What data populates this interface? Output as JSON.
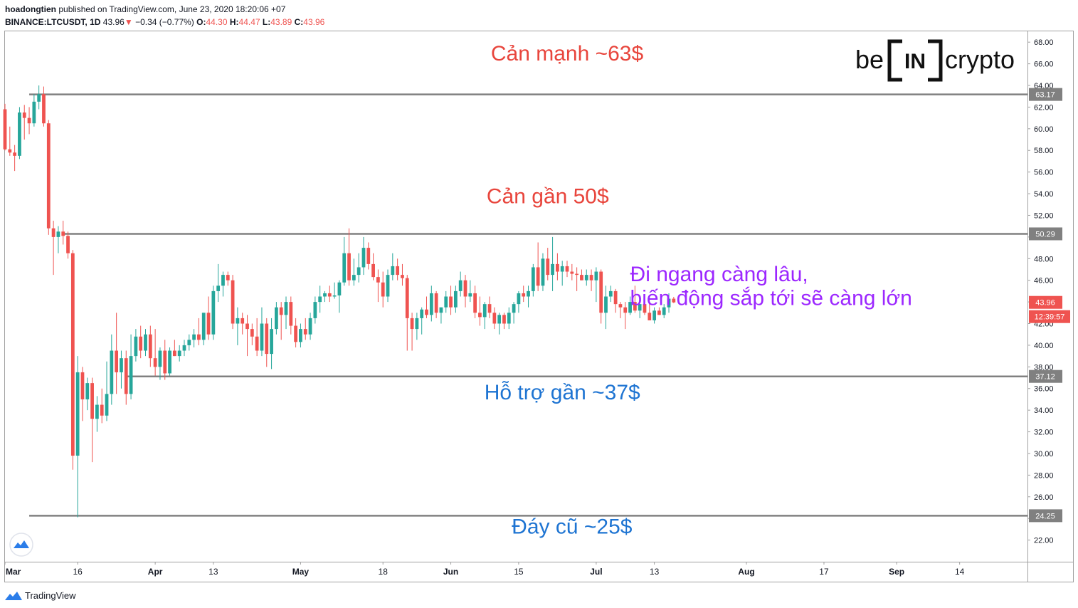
{
  "header": {
    "publisher": "hoadongtien",
    "published_text": "published on TradingView.com, June 23, 2020 18:20:06 +07",
    "symbol": "BINANCE:LTCUSDT, 1D",
    "last": "43.96",
    "change": "−0.34 (−0.77%)",
    "o_label": "O:",
    "o_value": "44.30",
    "h_label": "H:",
    "h_value": "44.47",
    "l_label": "L:",
    "l_value": "43.89",
    "c_label": "C:",
    "c_value": "43.96"
  },
  "footer": {
    "brand": "TradingView"
  },
  "logo": {
    "left": "be",
    "mid": "IN",
    "right": "crypto"
  },
  "colors": {
    "up": "#26a69a",
    "down": "#ef5350",
    "level": "#808080",
    "red_text": "#e8453c",
    "blue_text": "#1e74d2",
    "purple_text": "#9c27ff"
  },
  "chart_data": {
    "type": "candlestick",
    "ylim": [
      20,
      69
    ],
    "x_start": "2020-03-01",
    "x_end": "2020-09-28",
    "y_ticks": [
      22,
      24,
      26,
      28,
      30,
      32,
      34,
      36,
      38,
      40,
      42,
      44,
      46,
      48,
      50,
      52,
      54,
      56,
      58,
      60,
      62,
      64,
      66,
      68
    ],
    "x_ticks": [
      {
        "date": "2020-03-01",
        "label": "Mar",
        "bold": true
      },
      {
        "date": "2020-03-16",
        "label": "16",
        "bold": false
      },
      {
        "date": "2020-04-01",
        "label": "Apr",
        "bold": true
      },
      {
        "date": "2020-04-13",
        "label": "13",
        "bold": false
      },
      {
        "date": "2020-05-01",
        "label": "May",
        "bold": true
      },
      {
        "date": "2020-05-18",
        "label": "18",
        "bold": false
      },
      {
        "date": "2020-06-01",
        "label": "Jun",
        "bold": true
      },
      {
        "date": "2020-06-15",
        "label": "15",
        "bold": false
      },
      {
        "date": "2020-07-01",
        "label": "Jul",
        "bold": true
      },
      {
        "date": "2020-07-13",
        "label": "13",
        "bold": false
      },
      {
        "date": "2020-08-01",
        "label": "Aug",
        "bold": true
      },
      {
        "date": "2020-08-17",
        "label": "17",
        "bold": false
      },
      {
        "date": "2020-09-01",
        "label": "Sep",
        "bold": true
      },
      {
        "date": "2020-09-14",
        "label": "14",
        "bold": false
      }
    ],
    "levels": [
      {
        "value": 63.17,
        "label": "63.17",
        "from": "2020-03-06"
      },
      {
        "value": 50.29,
        "label": "50.29",
        "from": "2020-03-13"
      },
      {
        "value": 37.12,
        "label": "37.12",
        "from": "2020-03-26"
      },
      {
        "value": 24.25,
        "label": "24.25",
        "from": "2020-03-06"
      }
    ],
    "price_label": {
      "value": 43.96,
      "label": "43.96",
      "countdown": "12:39:57"
    },
    "annotations": [
      {
        "text": "Cản mạnh ~63$",
        "color": "red",
        "x": "2020-06-25",
        "y": 66.3
      },
      {
        "text": "Cản gần 50$",
        "color": "red",
        "x": "2020-06-21",
        "y": 53.1
      },
      {
        "text": "Đi ngang càng lâu,",
        "color": "purple",
        "x": "2020-07-08",
        "y": 45.9
      },
      {
        "text": "biến động sắp tới sẽ càng lớn",
        "color": "purple",
        "x": "2020-07-08",
        "y": 43.7
      },
      {
        "text": "Hỗ trợ gần ~37$",
        "color": "blue",
        "x": "2020-06-24",
        "y": 35.0
      },
      {
        "text": "Đáy cũ ~25$",
        "color": "blue",
        "x": "2020-06-26",
        "y": 22.6
      }
    ],
    "candles": [
      {
        "o": 61.8,
        "h": 62.3,
        "l": 58.0,
        "c": 58.1
      },
      {
        "o": 58.1,
        "h": 60.2,
        "l": 57.5,
        "c": 57.8
      },
      {
        "o": 57.8,
        "h": 58.5,
        "l": 56.1,
        "c": 57.5
      },
      {
        "o": 57.5,
        "h": 62.0,
        "l": 57.2,
        "c": 61.5
      },
      {
        "o": 61.5,
        "h": 62.2,
        "l": 59.0,
        "c": 61.0
      },
      {
        "o": 61.0,
        "h": 62.0,
        "l": 59.5,
        "c": 60.5
      },
      {
        "o": 60.5,
        "h": 63.2,
        "l": 60.2,
        "c": 62.5
      },
      {
        "o": 62.5,
        "h": 64.0,
        "l": 61.8,
        "c": 63.2
      },
      {
        "o": 63.2,
        "h": 63.9,
        "l": 60.2,
        "c": 60.5
      },
      {
        "o": 60.5,
        "h": 60.8,
        "l": 50.2,
        "c": 50.8
      },
      {
        "o": 50.8,
        "h": 51.5,
        "l": 46.5,
        "c": 50.0
      },
      {
        "o": 50.0,
        "h": 51.0,
        "l": 48.5,
        "c": 50.5
      },
      {
        "o": 50.5,
        "h": 51.5,
        "l": 49.3,
        "c": 50.1
      },
      {
        "o": 50.1,
        "h": 50.5,
        "l": 48.0,
        "c": 48.5
      },
      {
        "o": 48.5,
        "h": 48.8,
        "l": 28.5,
        "c": 29.8
      },
      {
        "o": 29.8,
        "h": 39.0,
        "l": 24.1,
        "c": 37.5
      },
      {
        "o": 37.5,
        "h": 38.0,
        "l": 33.0,
        "c": 35.0
      },
      {
        "o": 35.0,
        "h": 37.0,
        "l": 34.0,
        "c": 36.5
      },
      {
        "o": 36.5,
        "h": 37.0,
        "l": 29.2,
        "c": 33.2
      },
      {
        "o": 33.2,
        "h": 35.3,
        "l": 32.0,
        "c": 34.5
      },
      {
        "o": 34.5,
        "h": 36.0,
        "l": 32.8,
        "c": 33.5
      },
      {
        "o": 33.5,
        "h": 38.5,
        "l": 33.0,
        "c": 35.5
      },
      {
        "o": 35.5,
        "h": 41.0,
        "l": 34.5,
        "c": 39.5
      },
      {
        "o": 39.5,
        "h": 43.0,
        "l": 35.5,
        "c": 37.5
      },
      {
        "o": 37.5,
        "h": 39.5,
        "l": 36.0,
        "c": 38.8
      },
      {
        "o": 38.8,
        "h": 39.5,
        "l": 34.5,
        "c": 35.5
      },
      {
        "o": 35.5,
        "h": 41.0,
        "l": 35.0,
        "c": 39.0
      },
      {
        "o": 39.0,
        "h": 41.5,
        "l": 38.5,
        "c": 40.8
      },
      {
        "o": 40.8,
        "h": 41.8,
        "l": 38.8,
        "c": 39.5
      },
      {
        "o": 39.5,
        "h": 41.5,
        "l": 39.0,
        "c": 41.0
      },
      {
        "o": 41.0,
        "h": 41.8,
        "l": 38.0,
        "c": 38.8
      },
      {
        "o": 38.8,
        "h": 41.5,
        "l": 37.2,
        "c": 38.0
      },
      {
        "o": 38.0,
        "h": 39.8,
        "l": 36.8,
        "c": 39.5
      },
      {
        "o": 39.5,
        "h": 40.5,
        "l": 36.8,
        "c": 37.4
      },
      {
        "o": 37.4,
        "h": 39.8,
        "l": 37.2,
        "c": 39.5
      },
      {
        "o": 39.5,
        "h": 40.5,
        "l": 39.0,
        "c": 39.0
      },
      {
        "o": 39.0,
        "h": 40.0,
        "l": 38.5,
        "c": 39.5
      },
      {
        "o": 39.5,
        "h": 40.5,
        "l": 39.0,
        "c": 40.0
      },
      {
        "o": 40.0,
        "h": 41.0,
        "l": 39.5,
        "c": 40.5
      },
      {
        "o": 40.5,
        "h": 41.5,
        "l": 39.8,
        "c": 41.0
      },
      {
        "o": 41.0,
        "h": 42.5,
        "l": 40.0,
        "c": 40.5
      },
      {
        "o": 40.5,
        "h": 43.0,
        "l": 40.0,
        "c": 43.0
      },
      {
        "o": 43.0,
        "h": 44.5,
        "l": 40.5,
        "c": 41.0
      },
      {
        "o": 41.0,
        "h": 45.5,
        "l": 40.5,
        "c": 45.0
      },
      {
        "o": 45.0,
        "h": 47.5,
        "l": 44.0,
        "c": 45.5
      },
      {
        "o": 45.5,
        "h": 46.8,
        "l": 44.5,
        "c": 46.5
      },
      {
        "o": 46.5,
        "h": 46.8,
        "l": 45.5,
        "c": 46.0
      },
      {
        "o": 46.0,
        "h": 46.5,
        "l": 41.5,
        "c": 42.0
      },
      {
        "o": 42.0,
        "h": 43.5,
        "l": 40.0,
        "c": 42.5
      },
      {
        "o": 42.5,
        "h": 43.0,
        "l": 41.0,
        "c": 42.0
      },
      {
        "o": 42.0,
        "h": 42.8,
        "l": 39.0,
        "c": 41.5
      },
      {
        "o": 41.5,
        "h": 42.0,
        "l": 40.0,
        "c": 40.8
      },
      {
        "o": 40.8,
        "h": 42.5,
        "l": 39.0,
        "c": 39.5
      },
      {
        "o": 39.5,
        "h": 43.5,
        "l": 39.0,
        "c": 42.0
      },
      {
        "o": 42.0,
        "h": 42.5,
        "l": 38.0,
        "c": 39.2
      },
      {
        "o": 39.2,
        "h": 42.5,
        "l": 37.8,
        "c": 41.5
      },
      {
        "o": 41.5,
        "h": 44.0,
        "l": 41.0,
        "c": 43.5
      },
      {
        "o": 43.5,
        "h": 44.0,
        "l": 40.5,
        "c": 42.8
      },
      {
        "o": 42.8,
        "h": 44.5,
        "l": 41.5,
        "c": 44.0
      },
      {
        "o": 44.0,
        "h": 44.5,
        "l": 41.0,
        "c": 41.8
      },
      {
        "o": 41.8,
        "h": 42.5,
        "l": 39.8,
        "c": 40.3
      },
      {
        "o": 40.3,
        "h": 42.0,
        "l": 39.8,
        "c": 41.5
      },
      {
        "o": 41.5,
        "h": 42.5,
        "l": 40.5,
        "c": 41.0
      },
      {
        "o": 41.0,
        "h": 43.0,
        "l": 40.5,
        "c": 42.5
      },
      {
        "o": 42.5,
        "h": 44.5,
        "l": 42.0,
        "c": 44.0
      },
      {
        "o": 44.0,
        "h": 45.5,
        "l": 43.0,
        "c": 44.5
      },
      {
        "o": 44.5,
        "h": 45.0,
        "l": 44.0,
        "c": 44.8
      },
      {
        "o": 44.8,
        "h": 45.5,
        "l": 44.0,
        "c": 44.5
      },
      {
        "o": 44.5,
        "h": 45.8,
        "l": 44.3,
        "c": 44.6
      },
      {
        "o": 44.6,
        "h": 46.0,
        "l": 43.0,
        "c": 45.8
      },
      {
        "o": 45.8,
        "h": 50.0,
        "l": 45.5,
        "c": 48.5
      },
      {
        "o": 48.5,
        "h": 50.8,
        "l": 45.5,
        "c": 46.0
      },
      {
        "o": 46.0,
        "h": 48.0,
        "l": 45.5,
        "c": 46.5
      },
      {
        "o": 46.5,
        "h": 48.5,
        "l": 45.8,
        "c": 47.2
      },
      {
        "o": 47.2,
        "h": 50.0,
        "l": 46.5,
        "c": 49.0
      },
      {
        "o": 49.0,
        "h": 49.5,
        "l": 47.0,
        "c": 47.5
      },
      {
        "o": 47.5,
        "h": 48.5,
        "l": 46.0,
        "c": 46.3
      },
      {
        "o": 46.3,
        "h": 47.0,
        "l": 44.0,
        "c": 45.8
      },
      {
        "o": 45.8,
        "h": 46.8,
        "l": 43.5,
        "c": 44.5
      },
      {
        "o": 44.5,
        "h": 47.0,
        "l": 44.0,
        "c": 46.5
      },
      {
        "o": 46.5,
        "h": 48.5,
        "l": 46.0,
        "c": 47.3
      },
      {
        "o": 47.3,
        "h": 48.0,
        "l": 46.0,
        "c": 46.5
      },
      {
        "o": 46.5,
        "h": 47.5,
        "l": 45.5,
        "c": 46.2
      },
      {
        "o": 46.2,
        "h": 46.5,
        "l": 39.5,
        "c": 42.5
      },
      {
        "o": 42.5,
        "h": 43.0,
        "l": 39.5,
        "c": 41.5
      },
      {
        "o": 41.5,
        "h": 43.0,
        "l": 40.5,
        "c": 42.5
      },
      {
        "o": 42.5,
        "h": 43.5,
        "l": 41.0,
        "c": 43.3
      },
      {
        "o": 43.3,
        "h": 44.5,
        "l": 42.5,
        "c": 42.8
      },
      {
        "o": 42.8,
        "h": 45.5,
        "l": 42.2,
        "c": 44.8
      },
      {
        "o": 44.8,
        "h": 45.0,
        "l": 42.5,
        "c": 43.0
      },
      {
        "o": 43.0,
        "h": 43.5,
        "l": 42.0,
        "c": 43.5
      },
      {
        "o": 43.5,
        "h": 45.0,
        "l": 43.0,
        "c": 44.5
      },
      {
        "o": 44.5,
        "h": 45.5,
        "l": 42.8,
        "c": 43.5
      },
      {
        "o": 43.5,
        "h": 45.5,
        "l": 43.0,
        "c": 45.0
      },
      {
        "o": 45.0,
        "h": 46.8,
        "l": 44.5,
        "c": 46.0
      },
      {
        "o": 46.0,
        "h": 46.5,
        "l": 43.5,
        "c": 44.5
      },
      {
        "o": 44.5,
        "h": 46.0,
        "l": 44.0,
        "c": 44.8
      },
      {
        "o": 44.8,
        "h": 45.5,
        "l": 42.5,
        "c": 43.0
      },
      {
        "o": 43.0,
        "h": 44.5,
        "l": 41.8,
        "c": 42.6
      },
      {
        "o": 42.6,
        "h": 44.0,
        "l": 41.5,
        "c": 43.8
      },
      {
        "o": 43.8,
        "h": 44.5,
        "l": 42.5,
        "c": 43.0
      },
      {
        "o": 43.0,
        "h": 43.5,
        "l": 41.5,
        "c": 42.0
      },
      {
        "o": 42.0,
        "h": 43.0,
        "l": 41.0,
        "c": 42.8
      },
      {
        "o": 42.8,
        "h": 43.0,
        "l": 41.5,
        "c": 42.0
      },
      {
        "o": 42.0,
        "h": 43.5,
        "l": 41.5,
        "c": 43.0
      },
      {
        "o": 43.0,
        "h": 44.0,
        "l": 42.0,
        "c": 43.8
      },
      {
        "o": 43.8,
        "h": 45.0,
        "l": 43.0,
        "c": 44.8
      },
      {
        "o": 44.8,
        "h": 45.5,
        "l": 44.0,
        "c": 44.5
      },
      {
        "o": 44.5,
        "h": 45.5,
        "l": 43.5,
        "c": 45.0
      },
      {
        "o": 45.0,
        "h": 47.5,
        "l": 44.5,
        "c": 47.2
      },
      {
        "o": 47.2,
        "h": 49.5,
        "l": 45.0,
        "c": 45.5
      },
      {
        "o": 45.5,
        "h": 48.5,
        "l": 45.0,
        "c": 48.0
      },
      {
        "o": 48.0,
        "h": 49.0,
        "l": 46.0,
        "c": 46.5
      },
      {
        "o": 46.5,
        "h": 50.0,
        "l": 45.0,
        "c": 47.5
      },
      {
        "o": 47.5,
        "h": 48.5,
        "l": 46.0,
        "c": 46.8
      },
      {
        "o": 46.8,
        "h": 47.8,
        "l": 45.5,
        "c": 47.3
      },
      {
        "o": 47.3,
        "h": 47.8,
        "l": 46.3,
        "c": 46.8
      },
      {
        "o": 46.8,
        "h": 47.5,
        "l": 46.0,
        "c": 46.6
      },
      {
        "o": 46.6,
        "h": 47.2,
        "l": 45.0,
        "c": 46.5
      },
      {
        "o": 46.5,
        "h": 47.0,
        "l": 46.0,
        "c": 46.0
      },
      {
        "o": 46.0,
        "h": 47.0,
        "l": 45.5,
        "c": 46.5
      },
      {
        "o": 46.5,
        "h": 47.0,
        "l": 45.0,
        "c": 46.0
      },
      {
        "o": 46.0,
        "h": 47.2,
        "l": 44.0,
        "c": 46.8
      },
      {
        "o": 46.8,
        "h": 47.0,
        "l": 42.0,
        "c": 43.0
      },
      {
        "o": 43.0,
        "h": 45.5,
        "l": 41.5,
        "c": 44.5
      },
      {
        "o": 44.5,
        "h": 45.5,
        "l": 44.0,
        "c": 45.0
      },
      {
        "o": 45.0,
        "h": 45.2,
        "l": 43.0,
        "c": 43.8
      },
      {
        "o": 43.8,
        "h": 44.0,
        "l": 42.5,
        "c": 43.5
      },
      {
        "o": 43.5,
        "h": 44.0,
        "l": 41.5,
        "c": 43.0
      },
      {
        "o": 43.0,
        "h": 44.5,
        "l": 42.8,
        "c": 44.0
      },
      {
        "o": 44.0,
        "h": 45.5,
        "l": 43.0,
        "c": 43.2
      },
      {
        "o": 43.2,
        "h": 43.8,
        "l": 42.5,
        "c": 43.8
      },
      {
        "o": 43.8,
        "h": 44.0,
        "l": 42.8,
        "c": 43.0
      },
      {
        "o": 43.0,
        "h": 44.0,
        "l": 42.5,
        "c": 42.3
      },
      {
        "o": 42.3,
        "h": 43.5,
        "l": 42.0,
        "c": 43.2
      },
      {
        "o": 43.2,
        "h": 43.5,
        "l": 42.8,
        "c": 42.8
      },
      {
        "o": 42.8,
        "h": 43.8,
        "l": 42.5,
        "c": 43.5
      },
      {
        "o": 43.5,
        "h": 44.8,
        "l": 43.0,
        "c": 44.3
      },
      {
        "o": 44.3,
        "h": 44.47,
        "l": 43.89,
        "c": 43.96
      }
    ]
  }
}
